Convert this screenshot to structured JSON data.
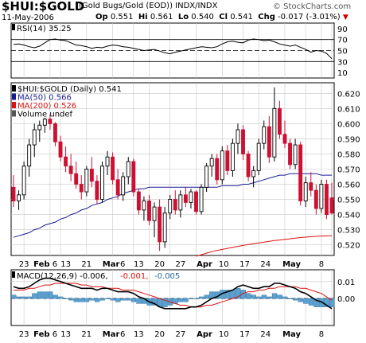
{
  "header": {
    "ticker": "$HUI:$GOLD",
    "subtitle": "(Gold Bugs/Gold (EOD)) INDX/INDX",
    "date": "11-May-2006",
    "op_label": "Op",
    "op": "0.551",
    "hi_label": "Hi",
    "hi": "0.561",
    "lo_label": "Lo",
    "lo": "0.540",
    "cl_label": "Cl",
    "cl": "0.541",
    "chg_label": "Chg",
    "chg": "-0.017 (-3.01%)",
    "copyright": "© StockCharts.com"
  },
  "colors": {
    "up": "#000000",
    "down": "#cc1133",
    "ma50": "#1a1a99",
    "ma200": "#dd1111",
    "rsi": "#000000",
    "macd": "#000000",
    "signal": "#dd1111",
    "histogram": "#5aa0d0",
    "grid": "#c8c8c8"
  },
  "chart_data": [
    {
      "type": "line",
      "title": "RSI(14) 35.25",
      "legend": "RSI(14) 35.25",
      "ylim": [
        0,
        100
      ],
      "y_ticks": [
        10,
        30,
        50,
        70,
        90
      ],
      "reference_lines": [
        30,
        50,
        70
      ],
      "series": [
        {
          "name": "RSI(14)",
          "values": [
            61,
            62,
            60,
            57,
            55,
            58,
            64,
            70,
            71,
            69,
            68,
            64,
            60,
            59,
            57,
            54,
            56,
            55,
            58,
            60,
            59,
            57,
            56,
            54,
            52,
            50,
            51,
            52,
            49,
            46,
            44,
            47,
            49,
            51,
            53,
            55,
            57,
            56,
            55,
            57,
            62,
            66,
            67,
            65,
            64,
            69,
            71,
            70,
            68,
            69,
            66,
            62,
            60,
            58,
            60,
            56,
            52,
            47,
            50,
            49,
            45,
            35.25
          ]
        }
      ]
    },
    {
      "type": "candlestick",
      "title": "$HUI:$GOLD (Daily) 0.541",
      "legend": [
        "$HUI:$GOLD (Daily) 0.541",
        "MA(50) 0.566",
        "MA(200) 0.526",
        "Volume undef"
      ],
      "ylim": [
        0.513,
        0.627
      ],
      "y_ticks": [
        0.52,
        0.53,
        0.54,
        0.55,
        0.56,
        0.57,
        0.58,
        0.59,
        0.6,
        0.61,
        0.62
      ],
      "x_tick_labels": [
        "23",
        "Feb",
        "6",
        "13",
        "21",
        "Mar",
        "6",
        "13",
        "20",
        "27",
        "Apr",
        "10",
        "17",
        "24",
        "May",
        "8"
      ],
      "ohlc": [
        [
          0.558,
          0.566,
          0.545,
          0.549
        ],
        [
          0.549,
          0.556,
          0.543,
          0.553
        ],
        [
          0.553,
          0.575,
          0.55,
          0.572
        ],
        [
          0.572,
          0.59,
          0.565,
          0.586
        ],
        [
          0.586,
          0.6,
          0.578,
          0.596
        ],
        [
          0.596,
          0.602,
          0.588,
          0.599
        ],
        [
          0.599,
          0.604,
          0.594,
          0.603
        ],
        [
          0.603,
          0.606,
          0.596,
          0.6
        ],
        [
          0.6,
          0.601,
          0.585,
          0.588
        ],
        [
          0.588,
          0.592,
          0.575,
          0.578
        ],
        [
          0.578,
          0.585,
          0.568,
          0.572
        ],
        [
          0.572,
          0.58,
          0.562,
          0.567
        ],
        [
          0.567,
          0.575,
          0.557,
          0.56
        ],
        [
          0.56,
          0.566,
          0.55,
          0.555
        ],
        [
          0.555,
          0.572,
          0.552,
          0.57
        ],
        [
          0.57,
          0.578,
          0.558,
          0.562
        ],
        [
          0.562,
          0.566,
          0.547,
          0.55
        ],
        [
          0.55,
          0.575,
          0.548,
          0.572
        ],
        [
          0.572,
          0.582,
          0.566,
          0.578
        ],
        [
          0.578,
          0.581,
          0.56,
          0.563
        ],
        [
          0.563,
          0.57,
          0.55,
          0.553
        ],
        [
          0.553,
          0.568,
          0.549,
          0.565
        ],
        [
          0.565,
          0.578,
          0.56,
          0.575
        ],
        [
          0.575,
          0.577,
          0.552,
          0.555
        ],
        [
          0.555,
          0.557,
          0.54,
          0.543
        ],
        [
          0.543,
          0.552,
          0.536,
          0.549
        ],
        [
          0.549,
          0.553,
          0.533,
          0.536
        ],
        [
          0.536,
          0.548,
          0.525,
          0.545
        ],
        [
          0.545,
          0.55,
          0.516,
          0.522
        ],
        [
          0.522,
          0.545,
          0.518,
          0.541
        ],
        [
          0.541,
          0.553,
          0.537,
          0.55
        ],
        [
          0.55,
          0.556,
          0.54,
          0.543
        ],
        [
          0.543,
          0.556,
          0.538,
          0.553
        ],
        [
          0.553,
          0.558,
          0.545,
          0.548
        ],
        [
          0.548,
          0.557,
          0.544,
          0.555
        ],
        [
          0.555,
          0.556,
          0.54,
          0.542
        ],
        [
          0.542,
          0.56,
          0.54,
          0.558
        ],
        [
          0.558,
          0.574,
          0.555,
          0.572
        ],
        [
          0.572,
          0.58,
          0.565,
          0.577
        ],
        [
          0.577,
          0.58,
          0.56,
          0.563
        ],
        [
          0.563,
          0.585,
          0.56,
          0.582
        ],
        [
          0.582,
          0.586,
          0.566,
          0.569
        ],
        [
          0.569,
          0.59,
          0.565,
          0.587
        ],
        [
          0.587,
          0.6,
          0.58,
          0.596
        ],
        [
          0.596,
          0.599,
          0.576,
          0.58
        ],
        [
          0.58,
          0.582,
          0.562,
          0.565
        ],
        [
          0.565,
          0.572,
          0.558,
          0.569
        ],
        [
          0.569,
          0.59,
          0.566,
          0.587
        ],
        [
          0.587,
          0.602,
          0.583,
          0.598
        ],
        [
          0.598,
          0.605,
          0.574,
          0.578
        ],
        [
          0.578,
          0.624,
          0.575,
          0.61
        ],
        [
          0.61,
          0.615,
          0.59,
          0.593
        ],
        [
          0.593,
          0.602,
          0.584,
          0.587
        ],
        [
          0.587,
          0.59,
          0.57,
          0.573
        ],
        [
          0.573,
          0.59,
          0.57,
          0.586
        ],
        [
          0.586,
          0.588,
          0.546,
          0.549
        ],
        [
          0.549,
          0.565,
          0.545,
          0.561
        ],
        [
          0.561,
          0.568,
          0.552,
          0.556
        ],
        [
          0.556,
          0.56,
          0.54,
          0.544
        ],
        [
          0.544,
          0.563,
          0.541,
          0.56
        ],
        [
          0.56,
          0.563,
          0.537,
          0.54
        ],
        [
          0.551,
          0.561,
          0.54,
          0.541
        ]
      ],
      "series": [
        {
          "name": "MA(50)",
          "values": [
            0.525,
            0.526,
            0.527,
            0.528,
            0.53,
            0.531,
            0.533,
            0.534,
            0.535,
            0.537,
            0.538,
            0.54,
            0.541,
            0.543,
            0.544,
            0.546,
            0.547,
            0.548,
            0.55,
            0.551,
            0.552,
            0.554,
            0.555,
            0.556,
            0.557,
            0.557,
            0.558,
            0.558,
            0.558,
            0.558,
            0.558,
            0.558,
            0.558,
            0.558,
            0.558,
            0.558,
            0.558,
            0.558,
            0.558,
            0.558,
            0.559,
            0.559,
            0.559,
            0.559,
            0.56,
            0.56,
            0.561,
            0.562,
            0.563,
            0.564,
            0.565,
            0.566,
            0.566,
            0.567,
            0.567,
            0.567,
            0.567,
            0.567,
            0.567,
            0.566,
            0.566,
            0.566
          ]
        },
        {
          "name": "MA(200)",
          "values": [
            null,
            null,
            null,
            null,
            null,
            null,
            null,
            null,
            null,
            null,
            null,
            null,
            null,
            null,
            null,
            null,
            null,
            null,
            null,
            null,
            null,
            null,
            null,
            null,
            null,
            null,
            null,
            null,
            null,
            null,
            null,
            null,
            null,
            null,
            null,
            0.5125,
            0.5135,
            0.5145,
            0.5155,
            0.5163,
            0.517,
            0.5177,
            0.5184,
            0.519,
            0.5196,
            0.5202,
            0.5208,
            0.5213,
            0.5218,
            0.5223,
            0.5228,
            0.5232,
            0.5236,
            0.524,
            0.5244,
            0.5248,
            0.5251,
            0.5254,
            0.5256,
            0.5258,
            0.5259,
            0.526
          ]
        }
      ]
    },
    {
      "type": "line",
      "title": "MACD(12,26,9) -0.006, -0.001, -0.005",
      "legend": [
        "MACD(12,26,9) -0.006,",
        "-0.001,",
        "-0.005"
      ],
      "ylim": [
        -0.016,
        0.017
      ],
      "y_ticks": [
        0.0,
        0.01
      ],
      "series": [
        {
          "name": "MACD",
          "values": [
            0.007,
            0.006,
            0.006,
            0.007,
            0.009,
            0.011,
            0.012,
            0.012,
            0.011,
            0.01,
            0.009,
            0.008,
            0.007,
            0.006,
            0.006,
            0.006,
            0.005,
            0.006,
            0.006,
            0.005,
            0.004,
            0.004,
            0.004,
            0.003,
            0.001,
            0.0,
            -0.002,
            -0.003,
            -0.005,
            -0.006,
            -0.006,
            -0.006,
            -0.006,
            -0.006,
            -0.005,
            -0.005,
            -0.004,
            -0.002,
            0.0,
            0.001,
            0.003,
            0.004,
            0.005,
            0.007,
            0.008,
            0.007,
            0.006,
            0.006,
            0.007,
            0.007,
            0.009,
            0.009,
            0.008,
            0.007,
            0.006,
            0.004,
            0.003,
            0.001,
            -0.001,
            -0.002,
            -0.004,
            -0.006
          ]
        },
        {
          "name": "Signal",
          "values": [
            0.005,
            0.005,
            0.005,
            0.006,
            0.006,
            0.007,
            0.008,
            0.008,
            0.009,
            0.009,
            0.009,
            0.009,
            0.009,
            0.008,
            0.008,
            0.007,
            0.007,
            0.007,
            0.006,
            0.006,
            0.006,
            0.005,
            0.005,
            0.005,
            0.004,
            0.003,
            0.002,
            0.001,
            0.0,
            -0.001,
            -0.002,
            -0.003,
            -0.004,
            -0.004,
            -0.005,
            -0.005,
            -0.005,
            -0.004,
            -0.004,
            -0.003,
            -0.002,
            -0.001,
            0.0,
            0.001,
            0.003,
            0.004,
            0.004,
            0.005,
            0.005,
            0.006,
            0.006,
            0.007,
            0.007,
            0.007,
            0.007,
            0.006,
            0.006,
            0.005,
            0.004,
            0.003,
            0.001,
            -0.001
          ]
        },
        {
          "name": "Histogram",
          "values": [
            0.002,
            0.001,
            0.001,
            0.001,
            0.003,
            0.004,
            0.004,
            0.004,
            0.002,
            0.001,
            0.0,
            -0.001,
            -0.002,
            -0.002,
            -0.002,
            -0.001,
            -0.002,
            -0.001,
            0.0,
            -0.001,
            -0.002,
            -0.001,
            -0.001,
            -0.002,
            -0.003,
            -0.003,
            -0.004,
            -0.004,
            -0.005,
            -0.005,
            -0.004,
            -0.003,
            -0.002,
            -0.002,
            0.0,
            0.0,
            0.001,
            0.002,
            0.004,
            0.004,
            0.005,
            0.005,
            0.005,
            0.006,
            0.005,
            0.003,
            0.002,
            0.001,
            0.002,
            0.001,
            0.003,
            0.002,
            0.001,
            0.0,
            -0.001,
            -0.002,
            -0.003,
            -0.004,
            -0.005,
            -0.005,
            -0.005,
            -0.005
          ]
        }
      ]
    }
  ]
}
